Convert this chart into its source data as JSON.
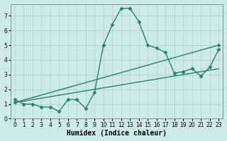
{
  "x": [
    0,
    1,
    2,
    3,
    4,
    5,
    6,
    7,
    8,
    9,
    10,
    11,
    12,
    13,
    14,
    15,
    16,
    17,
    18,
    19,
    20,
    21,
    22,
    23
  ],
  "y_curve": [
    1.3,
    1.0,
    1.0,
    0.8,
    0.8,
    0.5,
    1.3,
    1.3,
    0.7,
    1.8,
    5.0,
    6.4,
    7.5,
    7.5,
    6.6,
    5.0,
    4.8,
    4.5,
    3.1,
    3.2,
    3.4,
    2.9,
    3.5,
    4.7
  ],
  "y_line1_start": 1.1,
  "y_line1_end": 3.4,
  "y_line2_start": 1.1,
  "y_line2_end": 5.0,
  "color": "#2e7d6e",
  "bg_color": "#cceae8",
  "grid_color": "#aad4d0",
  "xlabel": "Humidex (Indice chaleur)",
  "ylim": [
    0,
    7.8
  ],
  "xlim": [
    -0.5,
    23.5
  ],
  "yticks": [
    0,
    1,
    2,
    3,
    4,
    5,
    6,
    7
  ],
  "xticks": [
    0,
    1,
    2,
    3,
    4,
    5,
    6,
    7,
    8,
    9,
    10,
    11,
    12,
    13,
    14,
    15,
    16,
    17,
    18,
    19,
    20,
    21,
    22,
    23
  ],
  "marker": "D",
  "markersize": 2.5,
  "linewidth": 1.0,
  "xlabel_fontsize": 7,
  "tick_fontsize": 5.5
}
